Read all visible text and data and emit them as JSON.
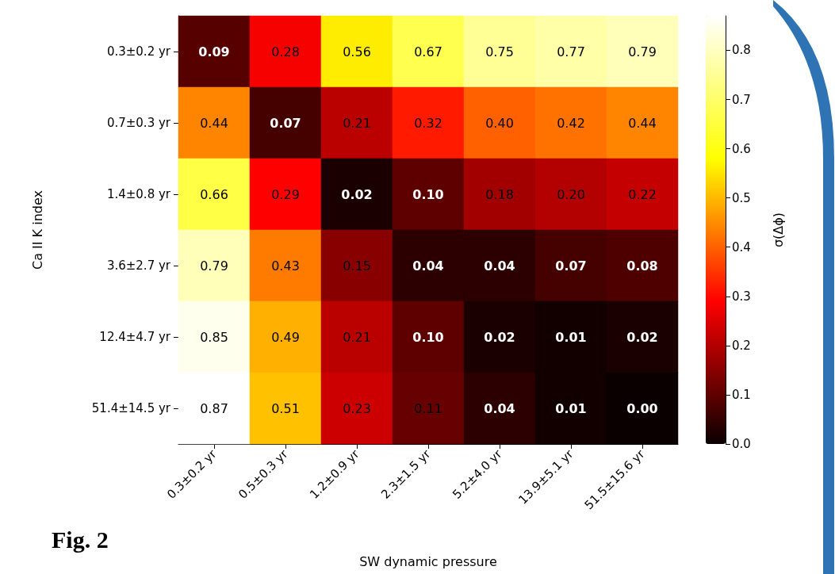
{
  "chart_data": {
    "type": "heatmap",
    "xlabel": "SW dynamic pressure",
    "ylabel": "Ca II K index",
    "clabel": "σ(Δϕ)",
    "annotations": [
      "Fig. 2"
    ],
    "categories": [
      "0.3±0.2 yr",
      "0.5±0.3 yr",
      "1.2±0.9 yr",
      "2.3±1.5 yr",
      "5.2±4.0 yr",
      "13.9±5.1 yr",
      "51.5±15.6 yr"
    ],
    "y_categories": [
      "0.3±0.2 yr",
      "0.7±0.3 yr",
      "1.4±0.8 yr",
      "3.6±2.7 yr",
      "12.4±4.7 yr",
      "51.4±14.5 yr"
    ],
    "cells": [
      [
        0.09,
        0.28,
        0.56,
        0.67,
        0.75,
        0.77,
        0.79
      ],
      [
        0.44,
        0.07,
        0.21,
        0.32,
        0.4,
        0.42,
        0.44
      ],
      [
        0.66,
        0.29,
        0.02,
        0.1,
        0.18,
        0.2,
        0.22
      ],
      [
        0.79,
        0.43,
        0.15,
        0.04,
        0.04,
        0.07,
        0.08
      ],
      [
        0.85,
        0.49,
        0.21,
        0.1,
        0.02,
        0.01,
        0.02
      ],
      [
        0.87,
        0.51,
        0.23,
        0.11,
        0.04,
        0.01,
        0.0
      ]
    ],
    "cell_labels": [
      [
        "0.09",
        "0.28",
        "0.56",
        "0.67",
        "0.75",
        "0.77",
        "0.79"
      ],
      [
        "0.44",
        "0.07",
        "0.21",
        "0.32",
        "0.40",
        "0.42",
        "0.44"
      ],
      [
        "0.66",
        "0.29",
        "0.02",
        "0.10",
        "0.18",
        "0.20",
        "0.22"
      ],
      [
        "0.79",
        "0.43",
        "0.15",
        "0.04",
        "0.04",
        "0.07",
        "0.08"
      ],
      [
        "0.85",
        "0.49",
        "0.21",
        "0.10",
        "0.02",
        "0.01",
        "0.02"
      ],
      [
        "0.87",
        "0.51",
        "0.23",
        "0.11",
        "0.04",
        "0.01",
        "0.00"
      ]
    ],
    "clim": [
      0,
      0.87
    ],
    "cticks": [
      {
        "value": 0,
        "label": "0.0"
      },
      {
        "value": 0.1,
        "label": "0.1"
      },
      {
        "value": 0.2,
        "label": "0.2"
      },
      {
        "value": 0.3,
        "label": "0.3"
      },
      {
        "value": 0.4,
        "label": "0.4"
      },
      {
        "value": 0.5,
        "label": "0.5"
      },
      {
        "value": 0.6,
        "label": "0.6"
      },
      {
        "value": 0.7,
        "label": "0.7"
      },
      {
        "value": 0.8,
        "label": "0.8"
      }
    ]
  }
}
